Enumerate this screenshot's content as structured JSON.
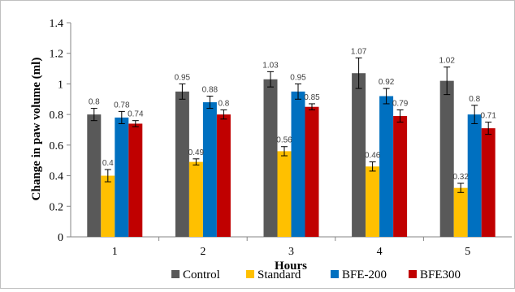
{
  "chart_data": {
    "type": "bar",
    "title": "",
    "xlabel": "Hours",
    "ylabel": "Change in paw volume (ml)",
    "ylim": [
      0,
      1.4
    ],
    "ytick_step": 0.2,
    "yticks": [
      "0",
      "0.2",
      "0.4",
      "0.6",
      "0.8",
      "1",
      "1.2",
      "1.4"
    ],
    "categories": [
      "1",
      "2",
      "3",
      "4",
      "5"
    ],
    "grid": false,
    "legend_position": "bottom",
    "series": [
      {
        "name": "Control",
        "color": "#595959",
        "values": [
          0.8,
          0.95,
          1.03,
          1.07,
          1.02
        ],
        "labels": [
          "0.8",
          "0.95",
          "1.03",
          "1.07",
          "1.02"
        ],
        "errors": [
          0.04,
          0.05,
          0.05,
          0.1,
          0.09
        ]
      },
      {
        "name": "Standard",
        "color": "#ffc000",
        "values": [
          0.4,
          0.49,
          0.56,
          0.46,
          0.32
        ],
        "labels": [
          "0.4",
          "0.49",
          "0.56",
          "0.46",
          "0.32"
        ],
        "errors": [
          0.04,
          0.02,
          0.03,
          0.03,
          0.03
        ]
      },
      {
        "name": "BFE-200",
        "color": "#0070c0",
        "values": [
          0.78,
          0.88,
          0.95,
          0.92,
          0.8
        ],
        "labels": [
          "0.78",
          "0.88",
          "0.95",
          "0.92",
          "0.8"
        ],
        "errors": [
          0.04,
          0.04,
          0.05,
          0.05,
          0.06
        ]
      },
      {
        "name": "BFE300",
        "color": "#c00000",
        "values": [
          0.74,
          0.8,
          0.85,
          0.79,
          0.71
        ],
        "labels": [
          "0.74",
          "0.8",
          "0.85",
          "0.79",
          "0.71"
        ],
        "errors": [
          0.02,
          0.03,
          0.02,
          0.04,
          0.04
        ]
      }
    ]
  }
}
